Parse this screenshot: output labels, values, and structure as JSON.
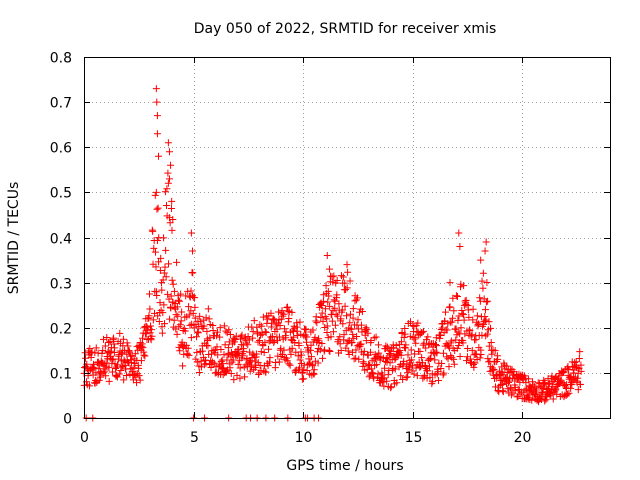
{
  "chart_data": {
    "type": "scatter",
    "title": "Day 050 of 2022, SRMTID for receiver xmis",
    "xlabel": "GPS time / hours",
    "ylabel": "SRMTID / TECUs",
    "xlim": [
      0,
      24
    ],
    "ylim": [
      0,
      0.8
    ],
    "grid": true,
    "marker": "+",
    "color": "#ff0000",
    "xticks": [
      0,
      5,
      10,
      15,
      20
    ],
    "xtick_labels": [
      "0",
      "5",
      "10",
      "15",
      "20"
    ],
    "yticks": [
      0,
      0.1,
      0.2,
      0.3,
      0.4,
      0.5,
      0.6,
      0.7,
      0.8
    ],
    "ytick_labels": [
      "0",
      "0.1",
      "0.2",
      "0.3",
      "0.4",
      "0.5",
      "0.6",
      "0.7",
      "0.8"
    ],
    "series": [
      {
        "name": "SRMTID",
        "profile": [
          {
            "x": 0.0,
            "y": 0.12
          },
          {
            "x": 0.5,
            "y": 0.11
          },
          {
            "x": 1.0,
            "y": 0.13
          },
          {
            "x": 1.5,
            "y": 0.14
          },
          {
            "x": 2.0,
            "y": 0.12
          },
          {
            "x": 2.5,
            "y": 0.12
          },
          {
            "x": 2.8,
            "y": 0.17
          },
          {
            "x": 3.0,
            "y": 0.22
          },
          {
            "x": 3.3,
            "y": 0.42
          },
          {
            "x": 3.5,
            "y": 0.26
          },
          {
            "x": 3.8,
            "y": 0.4
          },
          {
            "x": 4.1,
            "y": 0.3
          },
          {
            "x": 4.5,
            "y": 0.18
          },
          {
            "x": 4.9,
            "y": 0.25
          },
          {
            "x": 5.2,
            "y": 0.16
          },
          {
            "x": 5.6,
            "y": 0.18
          },
          {
            "x": 6.0,
            "y": 0.15
          },
          {
            "x": 6.5,
            "y": 0.15
          },
          {
            "x": 7.0,
            "y": 0.13
          },
          {
            "x": 7.5,
            "y": 0.15
          },
          {
            "x": 8.0,
            "y": 0.16
          },
          {
            "x": 8.5,
            "y": 0.17
          },
          {
            "x": 9.0,
            "y": 0.17
          },
          {
            "x": 9.5,
            "y": 0.18
          },
          {
            "x": 10.0,
            "y": 0.14
          },
          {
            "x": 10.5,
            "y": 0.15
          },
          {
            "x": 11.0,
            "y": 0.22
          },
          {
            "x": 11.5,
            "y": 0.23
          },
          {
            "x": 12.0,
            "y": 0.24
          },
          {
            "x": 12.5,
            "y": 0.19
          },
          {
            "x": 13.0,
            "y": 0.15
          },
          {
            "x": 13.5,
            "y": 0.12
          },
          {
            "x": 14.0,
            "y": 0.11
          },
          {
            "x": 14.5,
            "y": 0.14
          },
          {
            "x": 15.0,
            "y": 0.16
          },
          {
            "x": 15.5,
            "y": 0.14
          },
          {
            "x": 16.0,
            "y": 0.12
          },
          {
            "x": 16.5,
            "y": 0.17
          },
          {
            "x": 17.0,
            "y": 0.2
          },
          {
            "x": 17.3,
            "y": 0.25
          },
          {
            "x": 17.6,
            "y": 0.16
          },
          {
            "x": 18.0,
            "y": 0.2
          },
          {
            "x": 18.3,
            "y": 0.26
          },
          {
            "x": 18.6,
            "y": 0.12
          },
          {
            "x": 19.0,
            "y": 0.09
          },
          {
            "x": 19.5,
            "y": 0.08
          },
          {
            "x": 20.0,
            "y": 0.07
          },
          {
            "x": 20.5,
            "y": 0.06
          },
          {
            "x": 21.0,
            "y": 0.06
          },
          {
            "x": 21.5,
            "y": 0.07
          },
          {
            "x": 22.0,
            "y": 0.08
          },
          {
            "x": 22.5,
            "y": 0.1
          },
          {
            "x": 22.7,
            "y": 0.11
          }
        ],
        "peaks": [
          {
            "x": 3.3,
            "y": 0.73
          },
          {
            "x": 3.32,
            "y": 0.7
          },
          {
            "x": 3.35,
            "y": 0.67
          },
          {
            "x": 3.35,
            "y": 0.63
          },
          {
            "x": 3.4,
            "y": 0.58
          },
          {
            "x": 3.3,
            "y": 0.5
          },
          {
            "x": 3.85,
            "y": 0.61
          },
          {
            "x": 3.9,
            "y": 0.59
          },
          {
            "x": 3.95,
            "y": 0.56
          },
          {
            "x": 3.9,
            "y": 0.53
          },
          {
            "x": 4.0,
            "y": 0.48
          },
          {
            "x": 4.05,
            "y": 0.44
          },
          {
            "x": 4.9,
            "y": 0.41
          },
          {
            "x": 4.95,
            "y": 0.37
          },
          {
            "x": 11.1,
            "y": 0.36
          },
          {
            "x": 11.2,
            "y": 0.33
          },
          {
            "x": 12.0,
            "y": 0.34
          },
          {
            "x": 17.1,
            "y": 0.41
          },
          {
            "x": 17.15,
            "y": 0.38
          },
          {
            "x": 16.7,
            "y": 0.3
          },
          {
            "x": 18.35,
            "y": 0.39
          },
          {
            "x": 18.3,
            "y": 0.37
          },
          {
            "x": 18.1,
            "y": 0.35
          }
        ],
        "zero_points": [
          0.1,
          0.4,
          5.0,
          5.5,
          6.6,
          7.4,
          7.6,
          7.9,
          8.3,
          8.7,
          9.3,
          10.1,
          10.2,
          10.5,
          10.7
        ]
      }
    ]
  }
}
